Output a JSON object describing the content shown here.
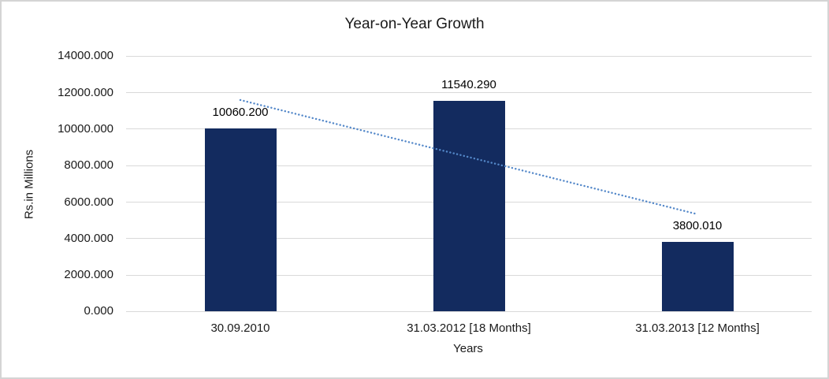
{
  "frame": {
    "background": "#ffffff",
    "border_color": "#d4d4d4"
  },
  "chart_data": {
    "type": "bar",
    "title": "Year-on-Year Growth",
    "xlabel": "Years",
    "ylabel": "Rs.in Millions",
    "categories": [
      "30.09.2010",
      "31.03.2012 [18 Months]",
      "31.03.2013 [12 Months]"
    ],
    "series": [
      {
        "name": "Rs.in Millions",
        "values": [
          10060.2,
          11540.29,
          3800.01
        ]
      }
    ],
    "data_labels": [
      "10060.200",
      "11540.290",
      "3800.010"
    ],
    "y_axis": {
      "min": 0,
      "max": 14000,
      "tick_step": 2000,
      "tick_labels": [
        "0.000",
        "2000.000",
        "4000.000",
        "6000.000",
        "8000.000",
        "10000.000",
        "12000.000",
        "14000.000"
      ]
    },
    "grid": true,
    "legend": "none",
    "trendline": {
      "type": "linear",
      "style": "dotted",
      "start_value": 11597,
      "end_value": 5337
    },
    "colors": {
      "bar": "#132b5f",
      "trendline": "#5488c9",
      "gridline": "#d9d9d9",
      "text": "#1a1a1a"
    }
  }
}
